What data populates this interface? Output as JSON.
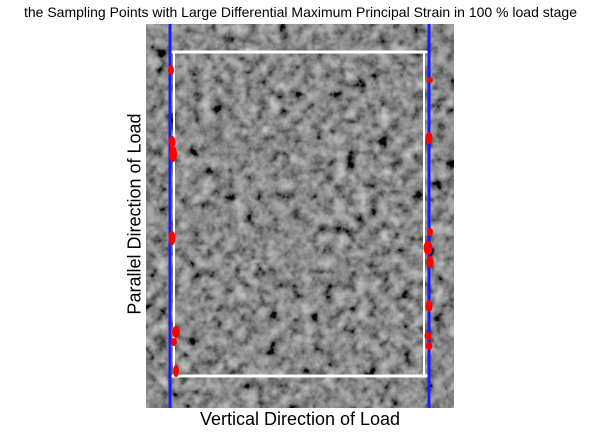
{
  "figure": {
    "title": "the Sampling Points with Large Differential Maximum Principal Strain in 100 % load stage",
    "xlabel": "Vertical Direction of Load",
    "ylabel": "Parallel Direction of Load"
  },
  "colors": {
    "background": "#ffffff",
    "specimen_base": "#3a3a3a",
    "boundary_lines": "#1a1aff",
    "sampling_points": "#ff0000",
    "measurement_frame": "#ffffff"
  }
}
